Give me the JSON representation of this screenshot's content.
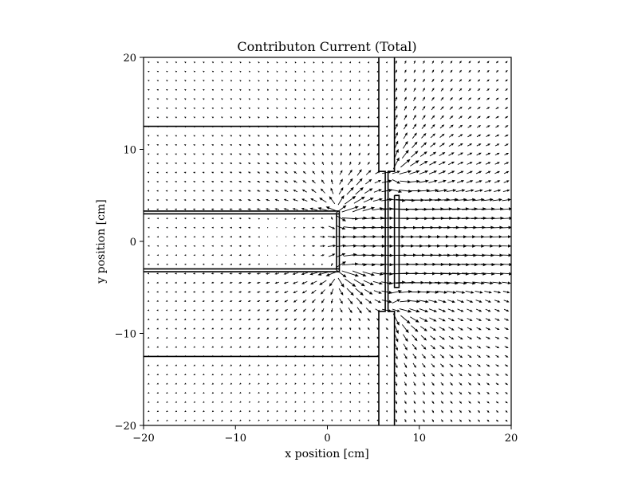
{
  "chart_data": {
    "type": "quiver",
    "title": "Contributon Current (Total)",
    "xlabel": "x position [cm]",
    "ylabel": "y position [cm]",
    "xlim": [
      -20,
      20
    ],
    "ylim": [
      -20,
      20
    ],
    "xticks": [
      -20,
      -10,
      0,
      10,
      20
    ],
    "yticks": [
      -20,
      -10,
      0,
      10,
      20
    ],
    "xtick_labels": [
      "−20",
      "−10",
      "0",
      "10",
      "20"
    ],
    "ytick_labels": [
      "−20",
      "−10",
      "0",
      "10",
      "20"
    ],
    "grid": false,
    "legend": "none",
    "colors": {
      "arrows": "#000000",
      "geometry": "#000000",
      "frame": "#000000"
    },
    "field": {
      "grid_x": {
        "start": -19.5,
        "stop": 19.5,
        "step": 1.0
      },
      "grid_y": {
        "start": -19.5,
        "stop": 19.5,
        "step": 1.0
      },
      "note_source_regions": [
        {
          "x": 1.5,
          "y": 3.0,
          "label": ""
        }
      ]
    },
    "geometry_lines": [
      {
        "x": [
          -20,
          5.6
        ],
        "y": [
          12.5,
          12.5
        ]
      },
      {
        "x": [
          -20,
          5.6
        ],
        "y": [
          -12.5,
          -12.5
        ]
      },
      {
        "x": [
          -20,
          1.3
        ],
        "y": [
          3.3,
          3.3
        ]
      },
      {
        "x": [
          -20,
          1.3
        ],
        "y": [
          3.0,
          3.0
        ]
      },
      {
        "x": [
          -20,
          1.3
        ],
        "y": [
          -3.0,
          -3.0
        ]
      },
      {
        "x": [
          -20,
          1.3
        ],
        "y": [
          -3.3,
          -3.3
        ]
      },
      {
        "x": [
          1.0,
          1.0
        ],
        "y": [
          -3.0,
          3.0
        ]
      },
      {
        "x": [
          1.3,
          1.3
        ],
        "y": [
          -3.3,
          3.3
        ]
      },
      {
        "x": [
          5.6,
          5.6,
          6.3,
          6.3,
          5.6,
          5.6
        ],
        "y": [
          20,
          7.6,
          7.6,
          -7.6,
          -7.6,
          -20
        ]
      },
      {
        "x": [
          7.3,
          7.3,
          6.6,
          6.6,
          7.3,
          7.3
        ],
        "y": [
          20,
          7.6,
          7.6,
          -7.6,
          -7.6,
          -20
        ]
      },
      {
        "x": [
          7.3,
          7.3,
          7.8,
          7.8,
          7.3
        ],
        "y": [
          5.0,
          -5.0,
          -5.0,
          5.0,
          5.0
        ]
      }
    ]
  }
}
